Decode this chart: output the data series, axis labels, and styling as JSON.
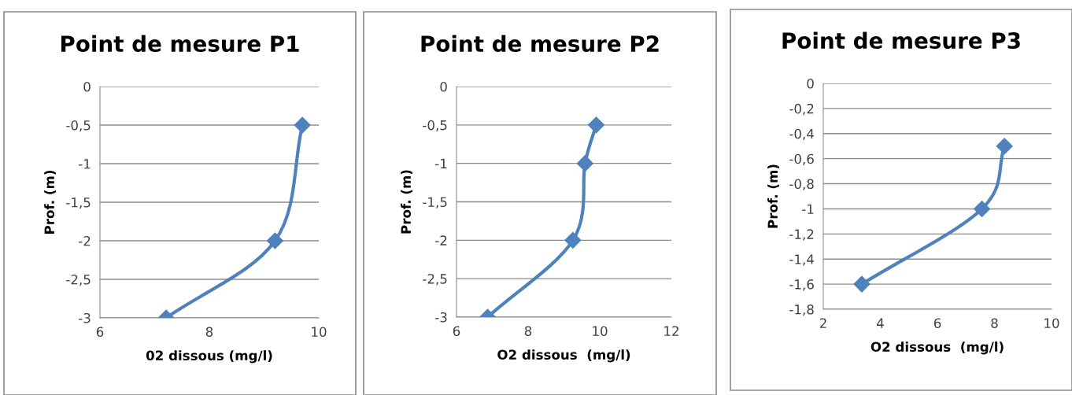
{
  "chart_data": [
    {
      "type": "line",
      "title": "Point de mesure P1",
      "xlabel": "02 dissous (mg/l)",
      "ylabel": "Prof. (m)",
      "marker": "diamond",
      "line_style": "solid",
      "grid": "y",
      "series": [
        {
          "color": "#4f81bd",
          "x": [
            9.7,
            9.2,
            7.21
          ],
          "values": [
            -0.5,
            -2,
            -3
          ]
        }
      ],
      "xlim": [
        6,
        10
      ],
      "xticks": [
        6,
        8,
        10
      ],
      "ylim": [
        -3,
        0
      ],
      "yticks": [
        {
          "value": -3,
          "label": "-3"
        },
        {
          "value": -2.5,
          "label": "-2,5"
        },
        {
          "value": -2,
          "label": "-2"
        },
        {
          "value": -1.5,
          "label": "-1,5"
        },
        {
          "value": -1,
          "label": "-1"
        },
        {
          "value": -0.5,
          "label": "-0,5"
        },
        0
      ]
    },
    {
      "type": "line",
      "title": "Point de mesure P2",
      "xlabel": "O2 dissous  (mg/l)",
      "ylabel": "Prof. (m)",
      "marker": "diamond",
      "line_style": "solid",
      "grid": "y",
      "series": [
        {
          "color": "#4f81bd",
          "x": [
            9.9,
            9.59,
            9.25,
            6.87
          ],
          "values": [
            -0.5,
            -1,
            -2,
            -3
          ]
        }
      ],
      "xlim": [
        6,
        12
      ],
      "xticks": [
        6,
        8,
        10,
        12
      ],
      "ylim": [
        -3,
        0
      ],
      "yticks": [
        {
          "value": -3,
          "label": "-3"
        },
        {
          "value": -2.5,
          "label": "-2,5"
        },
        {
          "value": -2,
          "label": "-2"
        },
        {
          "value": -1.5,
          "label": "-1,5"
        },
        {
          "value": -1,
          "label": "-1"
        },
        {
          "value": -0.5,
          "label": "-0,5"
        },
        0
      ]
    },
    {
      "type": "line",
      "title": "Point de mesure P3",
      "xlabel": "O2 dissous  (mg/l)",
      "ylabel": "Prof. (m)",
      "marker": "diamond",
      "line_style": "solid",
      "grid": "y",
      "series": [
        {
          "color": "#4f81bd",
          "x": [
            8.35,
            7.56,
            3.35
          ],
          "values": [
            -0.5,
            -1,
            -1.6
          ]
        }
      ],
      "xlim": [
        2,
        10
      ],
      "xticks": [
        2,
        4,
        6,
        8,
        10
      ],
      "ylim": [
        -1.8,
        0
      ],
      "yticks": [
        {
          "value": -1.8,
          "label": "-1,8"
        },
        {
          "value": -1.6,
          "label": "-1,6"
        },
        {
          "value": -1.4,
          "label": "-1,4"
        },
        {
          "value": -1.2,
          "label": "-1,2"
        },
        {
          "value": -1,
          "label": "-1"
        },
        {
          "value": -0.8,
          "label": "-0,8"
        },
        {
          "value": -0.6,
          "label": "-0,6"
        },
        {
          "value": -0.4,
          "label": "-0,4"
        },
        {
          "value": -0.2,
          "label": "-0,2"
        },
        0
      ]
    }
  ]
}
